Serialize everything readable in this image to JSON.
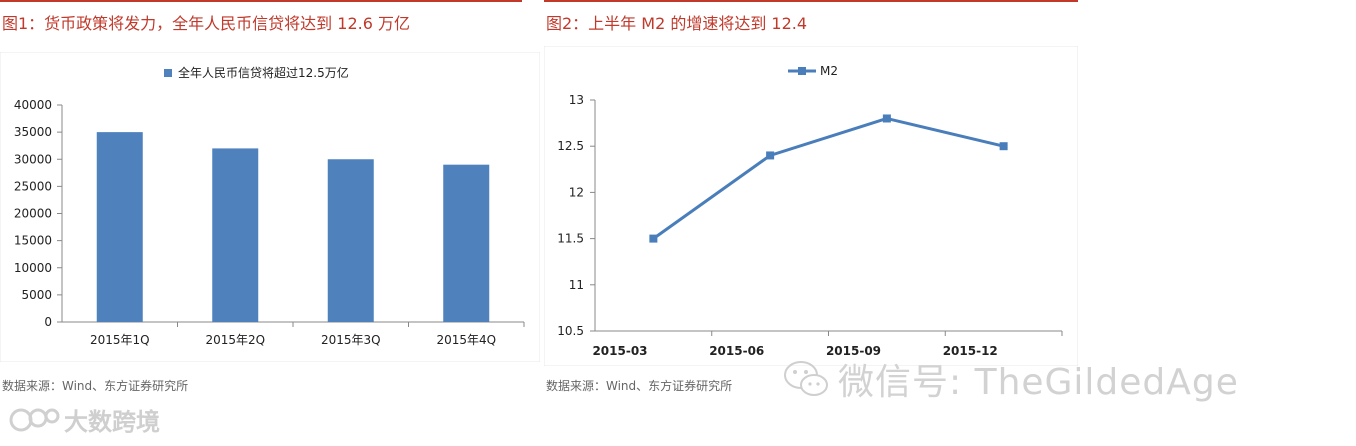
{
  "figure1": {
    "title": "图1：货币政策将发力，全年人民币信贷将达到 12.6 万亿",
    "source": "数据来源：Wind、东方证券研究所"
  },
  "figure2": {
    "title": "图2：上半年 M2 的增速将达到 12.4",
    "source": "数据来源：Wind、东方证券研究所"
  },
  "watermark": {
    "wechat_text": "微信号: TheGildedAge",
    "brand_text": "大数跨境"
  },
  "colors": {
    "bar": "#4f81bd",
    "line": "#4a7ebb",
    "title": "#c0392b"
  },
  "chart_data": [
    {
      "type": "bar",
      "categories": [
        "2015年1Q",
        "2015年2Q",
        "2015年3Q",
        "2015年4Q"
      ],
      "series": [
        {
          "name": "全年人民币信贷将超过12.5万亿",
          "values": [
            35000,
            32000,
            30000,
            29000
          ]
        }
      ],
      "ylim": [
        0,
        40000
      ],
      "yticks": [
        "0",
        "5000",
        "10000",
        "15000",
        "20000",
        "25000",
        "30000",
        "35000",
        "40000"
      ],
      "legend": "top"
    },
    {
      "type": "line",
      "categories": [
        "2015-03",
        "2015-06",
        "2015-09",
        "2015-12"
      ],
      "series": [
        {
          "name": "M2",
          "values": [
            11.5,
            12.4,
            12.8,
            12.5
          ]
        }
      ],
      "ylim": [
        10.5,
        13
      ],
      "yticks": [
        "10.5",
        "11",
        "11.5",
        "12",
        "12.5",
        "13"
      ],
      "legend": "top"
    }
  ]
}
